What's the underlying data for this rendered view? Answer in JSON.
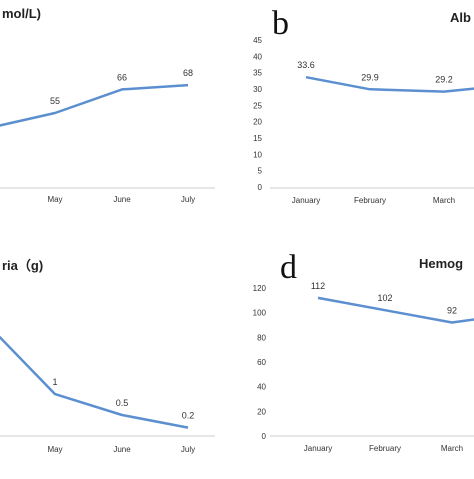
{
  "panels": {
    "a": {
      "letter": "",
      "title": "mol/L)"
    },
    "b": {
      "letter": "b",
      "title": "Alb"
    },
    "c": {
      "letter": "",
      "title": "ria（g)"
    },
    "d": {
      "letter": "d",
      "title": "Hemog"
    }
  },
  "colors": {
    "line": "#5b8fd0",
    "grid": "#d9d9d9",
    "text": "#333333"
  },
  "chart_data": [
    {
      "panel": "a",
      "type": "line",
      "categories": [
        "",
        "May",
        "June",
        "July"
      ],
      "values": [
        null,
        55,
        66,
        68
      ],
      "data_labels": [
        "",
        "55",
        "66",
        "68"
      ],
      "grid": false
    },
    {
      "panel": "b",
      "type": "line",
      "categories": [
        "January",
        "February",
        "March"
      ],
      "values": [
        33.6,
        29.9,
        29.2
      ],
      "data_labels": [
        "33.6",
        "29.9",
        "29.2"
      ],
      "yticks": [
        "45",
        "40",
        "35",
        "30",
        "25",
        "20",
        "15",
        "10",
        "5",
        "0"
      ],
      "ylim": [
        0,
        45
      ],
      "grid": false
    },
    {
      "panel": "c",
      "type": "line",
      "categories": [
        "May",
        "June",
        "July"
      ],
      "values": [
        1,
        0.5,
        0.2
      ],
      "data_labels": [
        "1",
        "0.5",
        "0.2"
      ],
      "grid": false
    },
    {
      "panel": "d",
      "type": "line",
      "categories": [
        "January",
        "February",
        "March"
      ],
      "values": [
        112,
        102,
        92
      ],
      "data_labels": [
        "112",
        "102",
        "92"
      ],
      "yticks": [
        "120",
        "100",
        "80",
        "60",
        "40",
        "20",
        "0"
      ],
      "ylim": [
        0,
        120
      ],
      "grid": false
    }
  ]
}
